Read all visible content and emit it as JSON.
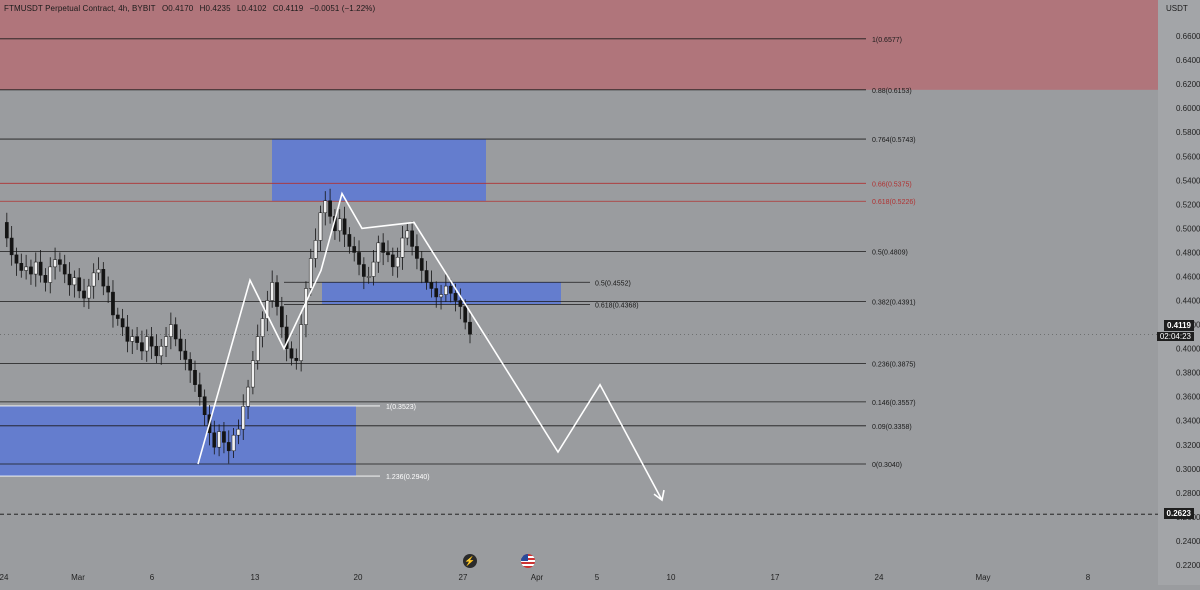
{
  "header": {
    "symbol": "FTMUSDT Perpetual Contract, 4h, BYBIT",
    "open": "O0.4170",
    "high": "H0.4235",
    "low": "L0.4102",
    "close": "C0.4119",
    "change": "−0.0051 (−1.22%)"
  },
  "price_axis": {
    "unit": "USDT",
    "current_price": "0.4119",
    "countdown": "02:04:23",
    "marked_level": "0.2623"
  },
  "colors": {
    "background": "#9a9c9f",
    "supply_zone": "#b46e74",
    "demand_box": "#5a78d6",
    "fib_red": "#b03232",
    "candle": "#141414",
    "projection": "#ffffff"
  },
  "chart_data": {
    "type": "candlestick",
    "ylim": [
      0.22,
      0.69
    ],
    "y_ticks": [
      "0.6600",
      "0.6400",
      "0.6200",
      "0.6000",
      "0.5800",
      "0.5600",
      "0.5400",
      "0.5200",
      "0.5000",
      "0.4800",
      "0.4600",
      "0.4400",
      "0.4200",
      "0.4000",
      "0.3800",
      "0.3600",
      "0.3400",
      "0.3200",
      "0.3000",
      "0.2800",
      "0.2600",
      "0.2400",
      "0.2200"
    ],
    "x_ticks": [
      "24",
      "Mar",
      "6",
      "13",
      "20",
      "27",
      "Apr",
      "5",
      "10",
      "17",
      "24",
      "May",
      "8"
    ],
    "fib_right": [
      {
        "label": "1(0.6577)",
        "value": 0.6577,
        "color": "dark"
      },
      {
        "label": "0.88(0.6153)",
        "value": 0.6153,
        "color": "dark"
      },
      {
        "label": "0.764(0.5743)",
        "value": 0.5743,
        "color": "dark"
      },
      {
        "label": "0.66(0.5375)",
        "value": 0.5375,
        "color": "red"
      },
      {
        "label": "0.618(0.5226)",
        "value": 0.5226,
        "color": "red"
      },
      {
        "label": "0.5(0.4809)",
        "value": 0.4809,
        "color": "dark"
      },
      {
        "label": "0.382(0.4391)",
        "value": 0.4391,
        "color": "dark"
      },
      {
        "label": "0.236(0.3875)",
        "value": 0.3875,
        "color": "dark"
      },
      {
        "label": "0.146(0.3557)",
        "value": 0.3557,
        "color": "dark"
      },
      {
        "label": "0.09(0.3358)",
        "value": 0.3358,
        "color": "dark"
      },
      {
        "label": "0(0.3040)",
        "value": 0.304,
        "color": "dark"
      }
    ],
    "fib_mid": [
      {
        "label": "0.5(0.4552)",
        "value": 0.4552
      },
      {
        "label": "0.618(0.4368)",
        "value": 0.4368
      }
    ],
    "fib_left": [
      {
        "label": "1(0.3523)",
        "value": 0.3523
      },
      {
        "label": "1.236(0.2940)",
        "value": 0.294
      }
    ],
    "zones": [
      {
        "name": "supply",
        "top": 0.69,
        "bottom": 0.6153
      },
      {
        "name": "upper-box",
        "top": 0.5743,
        "bottom": 0.5226
      },
      {
        "name": "mid-box",
        "top": 0.4552,
        "bottom": 0.4368
      },
      {
        "name": "lower-box",
        "top": 0.3523,
        "bottom": 0.294
      }
    ],
    "price_series": [
      0.505,
      0.492,
      0.478,
      0.471,
      0.465,
      0.468,
      0.462,
      0.472,
      0.461,
      0.455,
      0.468,
      0.474,
      0.47,
      0.462,
      0.453,
      0.459,
      0.448,
      0.442,
      0.452,
      0.463,
      0.466,
      0.452,
      0.447,
      0.428,
      0.425,
      0.418,
      0.406,
      0.41,
      0.405,
      0.398,
      0.41,
      0.402,
      0.394,
      0.402,
      0.41,
      0.42,
      0.408,
      0.398,
      0.391,
      0.382,
      0.37,
      0.36,
      0.345,
      0.33,
      0.318,
      0.331,
      0.322,
      0.315,
      0.328,
      0.333,
      0.352,
      0.368,
      0.39,
      0.41,
      0.425,
      0.44,
      0.455,
      0.435,
      0.418,
      0.4,
      0.392,
      0.39,
      0.42,
      0.45,
      0.475,
      0.49,
      0.513,
      0.523,
      0.51,
      0.498,
      0.508,
      0.495,
      0.485,
      0.48,
      0.47,
      0.46,
      0.46,
      0.472,
      0.488,
      0.48,
      0.478,
      0.468,
      0.476,
      0.492,
      0.498,
      0.485,
      0.475,
      0.465,
      0.455,
      0.45,
      0.443,
      0.445,
      0.452,
      0.446,
      0.44,
      0.435,
      0.422,
      0.412
    ],
    "projection_path": [
      [
        0.298,
        0.304
      ],
      [
        0.462,
        0.457
      ],
      [
        0.4,
        0.4
      ],
      [
        0.46,
        0.465
      ],
      [
        0.529,
        0.529
      ],
      [
        0.5,
        0.5
      ],
      [
        0.505,
        0.505
      ],
      [
        0.314,
        0.314
      ],
      [
        0.37,
        0.37
      ],
      [
        0.274,
        0.274
      ]
    ]
  }
}
